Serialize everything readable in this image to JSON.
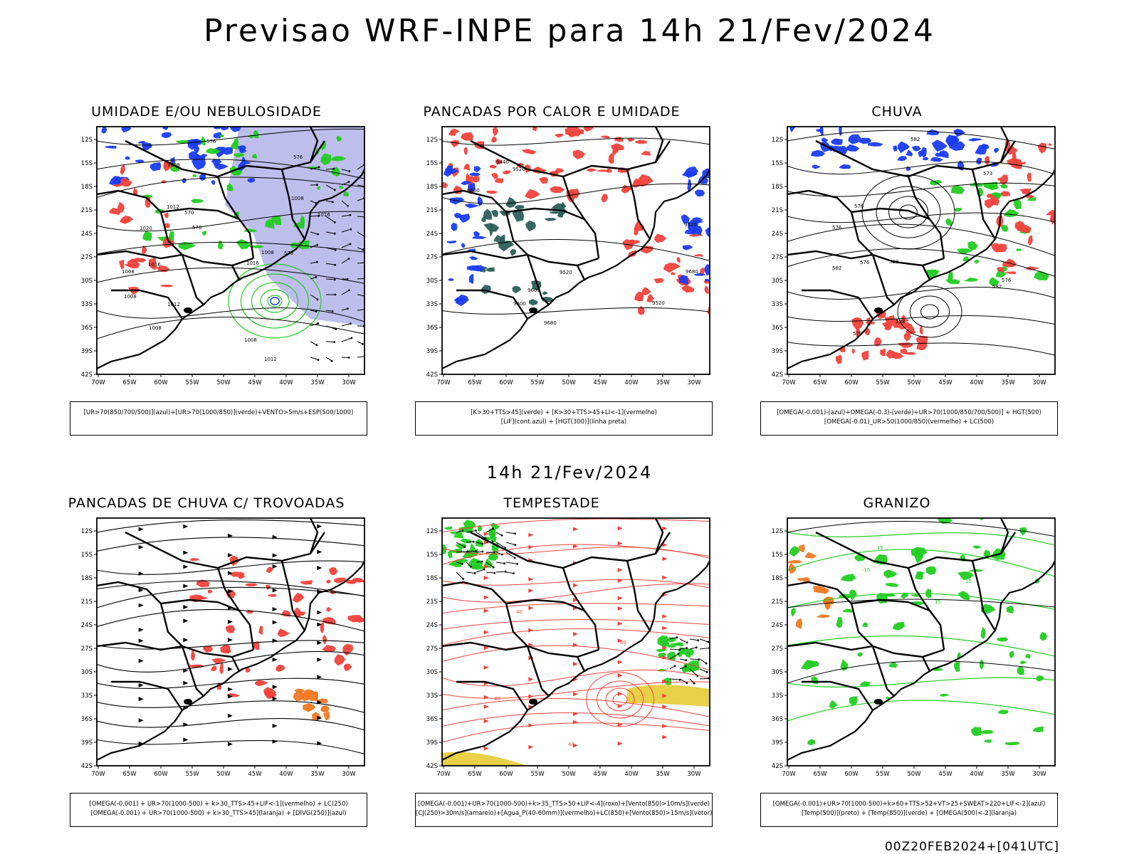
{
  "header": {
    "title": "Previsao WRF-INPE  para 14h 21/Fev/2024"
  },
  "subheader": {
    "time_label": "14h 21/Fev/2024"
  },
  "footer": {
    "run_label": "00Z20FEB2024+[041UTC]"
  },
  "axes": {
    "lat_labels": [
      "12S",
      "15S",
      "18S",
      "21S",
      "24S",
      "27S",
      "30S",
      "33S",
      "36S",
      "39S",
      "42S"
    ],
    "lon_labels": [
      "70W",
      "65W",
      "60W",
      "55W",
      "50W",
      "45W",
      "40W",
      "35W",
      "30W"
    ]
  },
  "colors": {
    "red": "#f0423c",
    "green": "#22cc22",
    "blue": "#1a3cf0",
    "lavender": "#a8a8e6",
    "dark_teal": "#2c5e58",
    "yellow": "#e8d048",
    "orange": "#f07820"
  },
  "panels": [
    {
      "id": "umidade",
      "title": "UMIDADE E/OU NEBULOSIDADE",
      "legend": [
        "[UR>70(850/700/500)](azul)+[UR>70(1000/850)](verde)+VENTO>5m/s+ESP(500/1000)"
      ],
      "contour_labels": [
        "1012",
        "1008",
        "1008",
        "1012",
        "1008",
        "1008",
        "1008",
        "1012",
        "1016",
        "1008",
        "1016",
        "1020",
        "1016",
        "1008",
        "576",
        "576",
        "576",
        "576",
        "570"
      ]
    },
    {
      "id": "pancadas-calor",
      "title": "PANCADAS POR CALOR E UMIDADE",
      "legend": [
        "[K>30+TTS>45](verde) + [K>30+TTS>45+LI<-1](vermelho)",
        "[LIF](cont.azul) + [HGT(300)](linha preta)"
      ],
      "contour_labels": [
        "9600",
        "9600",
        "9680",
        "9520",
        "9520",
        "9600",
        "9680",
        "9440",
        "9520",
        "9520"
      ]
    },
    {
      "id": "chuva",
      "title": "CHUVA",
      "legend": [
        "[OMEGA(-0.001)-(azul)+OMEGA(-0.3)-(verde)+UR>70(1000/850/700/500)] + HGT(500)",
        "[OMEGA(-0.01)_UR>50(1000/850)(vermelho) + LC(500)"
      ],
      "contour_labels": [
        "576",
        "582",
        "588",
        "576",
        "582",
        "576",
        "573",
        "576",
        "579",
        "582",
        "588"
      ]
    },
    {
      "id": "pancadas-trovoadas",
      "title": "PANCADAS DE CHUVA C/ TROVOADAS",
      "legend": [
        "[OMEGA(-0.001) + UR>70(1000-500) + k>30_TTS>45+LIF<-1](vermelho) + LC(250)",
        "[OMEGA(-0.001) + UR>70(1000-500) + k>30_TTS>45](laranja) + [DIVG(250)](azul)"
      ],
      "contour_labels": []
    },
    {
      "id": "tempestade",
      "title": "TEMPESTADE",
      "legend": [
        "[OMEGA(-0.001)+UR>70(1000-500)+k>35_TTS>50+LIF<-4](roxo)+[Vento(850)>10m/s](verde)",
        "[CJ(250)>30m/s](amarelo)+[Agua_P(40-60mm)](vermelho)+LC(850)+[Vento(850)>15m/s](vetor)"
      ],
      "contour_labels": [
        "40",
        "40",
        "40",
        "40"
      ]
    },
    {
      "id": "granizo",
      "title": "GRANIZO",
      "legend": [
        "[OMEGA(-0.001)+UR>70(1000-500)+k>60+TTS>52+VT>25+SWEAT>220+LIF<-2](azul)",
        "[Temp(500)](preto) + [Temp(850)](verde) + [OMEGA(500)<-2](laranja)"
      ],
      "contour_labels": [
        "-15",
        "15",
        "15",
        "15",
        "15"
      ]
    }
  ]
}
